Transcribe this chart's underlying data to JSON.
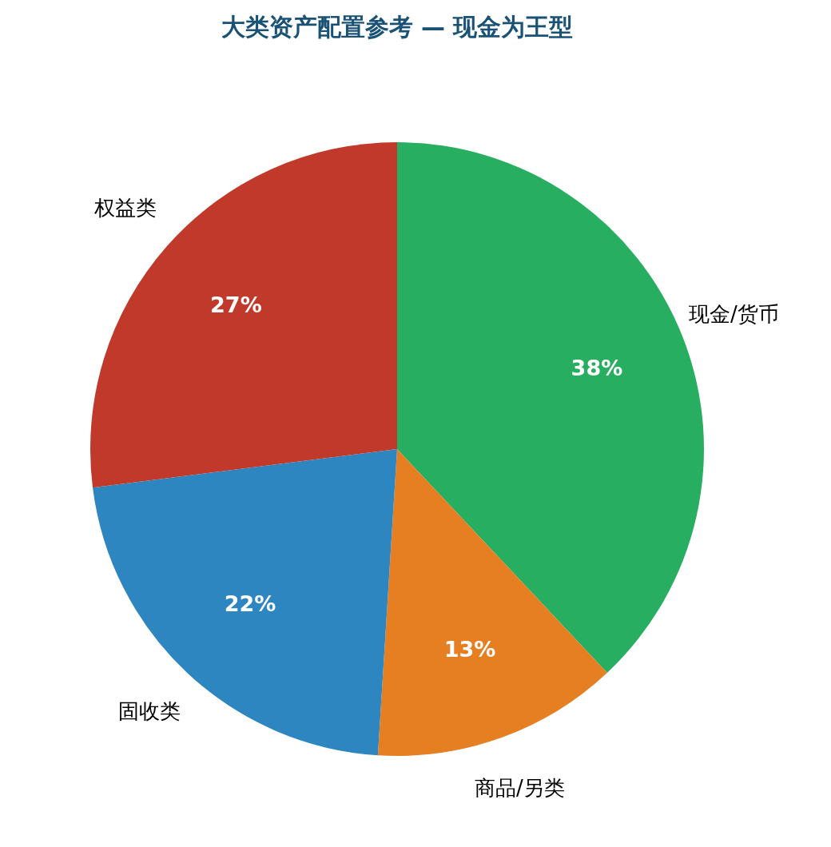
{
  "chart_data": {
    "type": "pie",
    "title": "大类资产配置参考 — 现金为王型",
    "categories": [
      "现金/货币",
      "商品/另类",
      "固收类",
      "权益类"
    ],
    "values": [
      38,
      13,
      22,
      27
    ],
    "value_labels": [
      "38%",
      "13%",
      "22%",
      "27%"
    ],
    "colors": [
      "#27ae60",
      "#e67e22",
      "#2e86c1",
      "#c0392b"
    ]
  }
}
